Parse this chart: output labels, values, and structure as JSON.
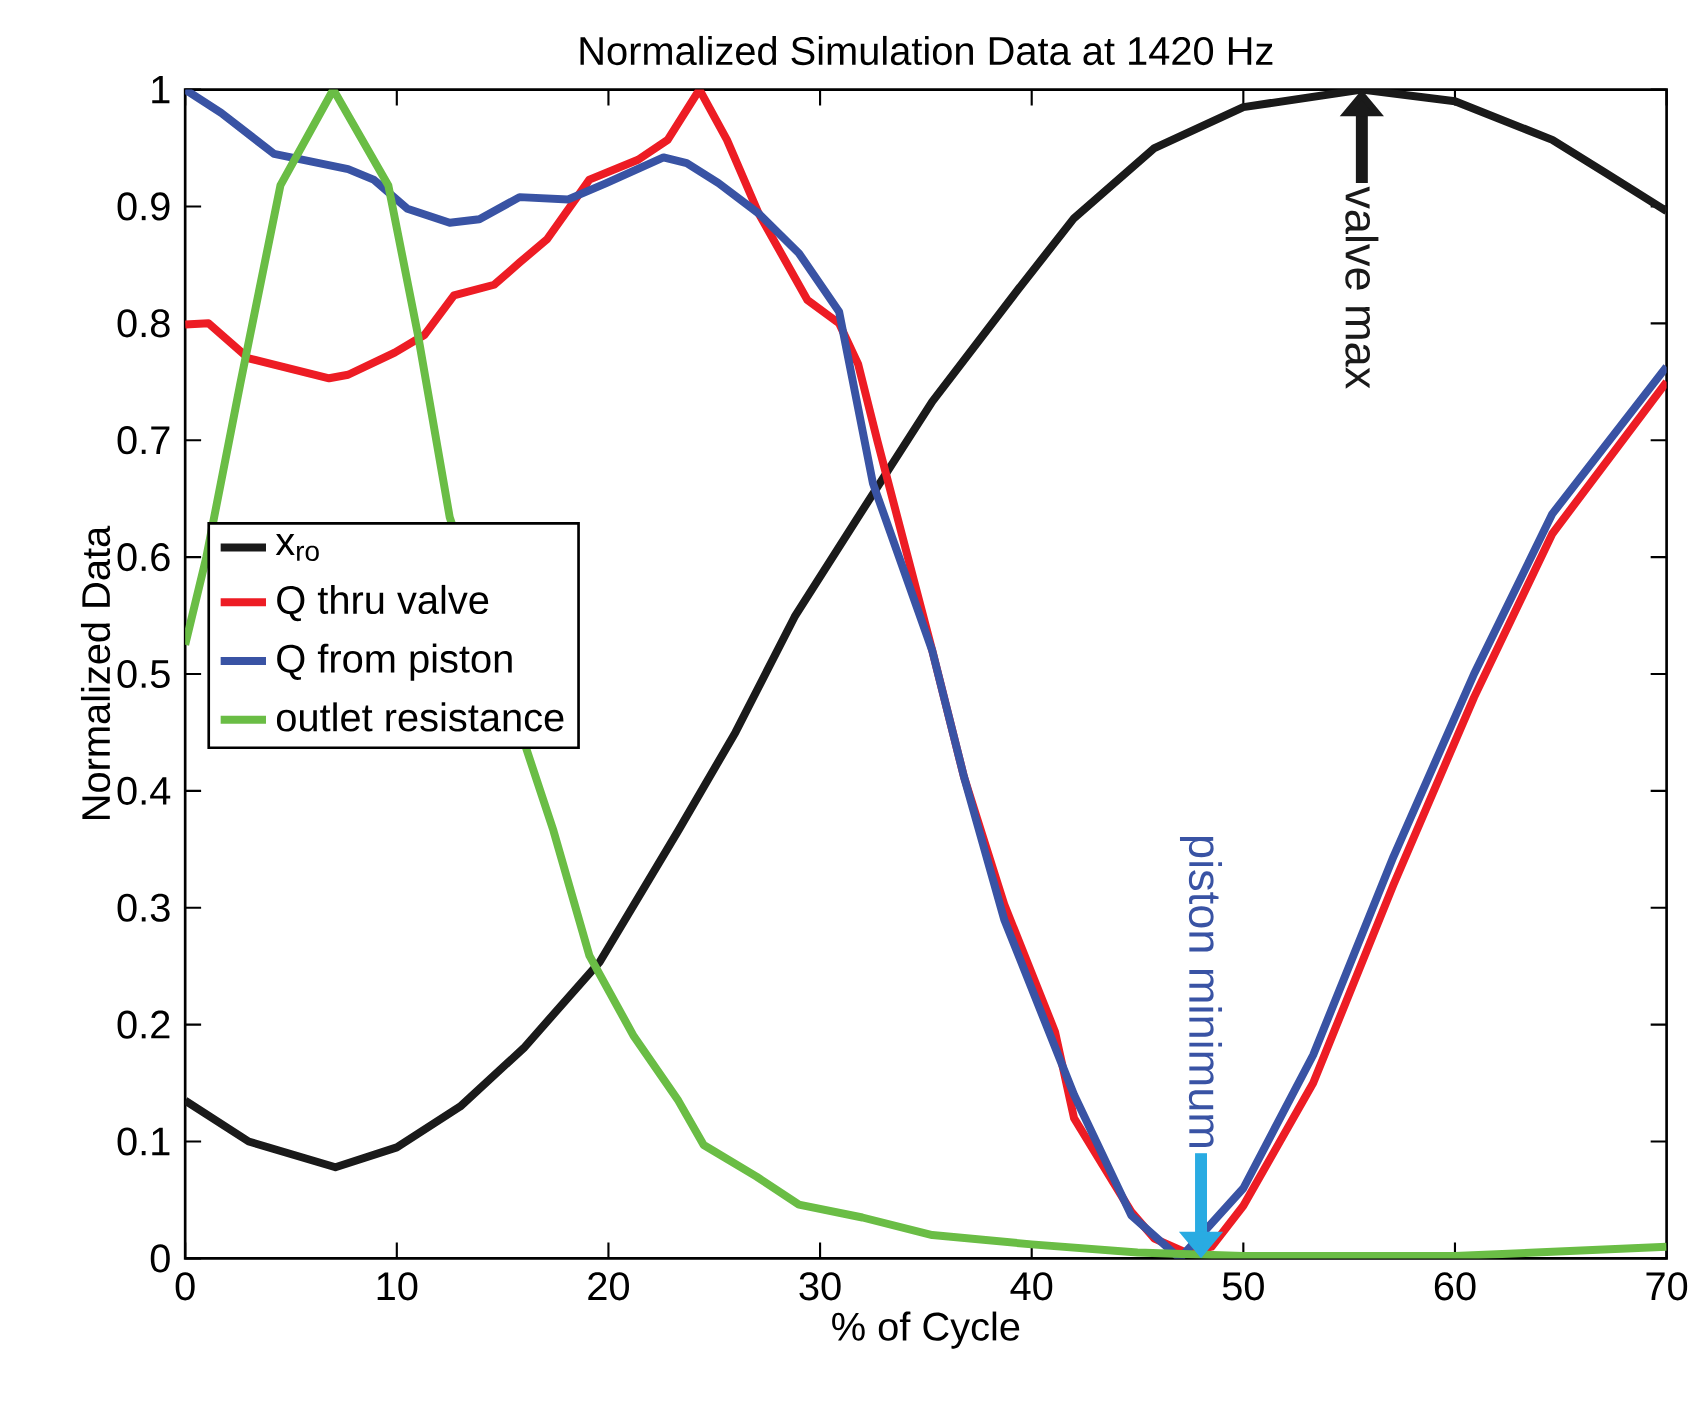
{
  "chart_data": {
    "type": "line",
    "title": "Normalized Simulation Data at 1420 Hz",
    "xlabel": "% of Cycle",
    "ylabel": "Normalized Data",
    "xlim": [
      0,
      70
    ],
    "ylim": [
      0,
      1
    ],
    "xticks": [
      0,
      10,
      20,
      30,
      40,
      50,
      60,
      70
    ],
    "yticks": [
      0,
      0.1,
      0.2,
      0.3,
      0.4,
      0.5,
      0.6,
      0.7,
      0.8,
      0.9,
      1
    ],
    "legend": "left",
    "grid": false,
    "marker": "none",
    "line_style": "solid",
    "series": [
      {
        "name": "x$_{ro}$",
        "color": "#1a1a1a",
        "x": [
          0,
          3,
          7.1,
          10,
          13,
          16,
          19.6,
          23.3,
          26,
          28.8,
          32,
          35.3,
          39.4,
          42,
          45.8,
          50,
          55.6,
          60,
          64.6,
          67,
          70
        ],
        "values": [
          0.135,
          0.1,
          0.078,
          0.095,
          0.13,
          0.18,
          0.254,
          0.366,
          0.45,
          0.549,
          0.64,
          0.733,
          0.83,
          0.89,
          0.95,
          0.985,
          1.0,
          0.99,
          0.957,
          0.93,
          0.896
        ]
      },
      {
        "name": "Q thru valve",
        "color": "#ed1c24",
        "x": [
          0,
          1.1,
          3,
          6.8,
          7.7,
          9.9,
          11.3,
          12.7,
          14.6,
          15.8,
          17.1,
          19.1,
          21.4,
          22.8,
          24.3,
          25.6,
          27.1,
          29.4,
          30.9,
          31.8,
          32.7,
          35.3,
          36.8,
          38.7,
          41.1,
          42,
          44.7,
          45.8,
          47.3,
          48.5,
          50,
          53.3,
          57.1,
          60.9,
          64.6,
          70
        ],
        "values": [
          0.799,
          0.8,
          0.77,
          0.753,
          0.756,
          0.775,
          0.79,
          0.824,
          0.833,
          0.852,
          0.872,
          0.923,
          0.94,
          0.957,
          1.0,
          0.957,
          0.894,
          0.82,
          0.8,
          0.765,
          0.7,
          0.52,
          0.412,
          0.303,
          0.194,
          0.12,
          0.04,
          0.017,
          0.005,
          0.01,
          0.045,
          0.15,
          0.32,
          0.48,
          0.62,
          0.75
        ]
      },
      {
        "name": "Q from piston",
        "color": "#3953a4",
        "x": [
          0,
          1.7,
          4.2,
          7.7,
          8.9,
          10.5,
          12.5,
          13.9,
          15.8,
          18.1,
          19.9,
          22.6,
          23.7,
          25.2,
          27.1,
          29,
          30.9,
          32.5,
          35.3,
          36.8,
          38.7,
          42,
          44.7,
          47,
          50,
          53.3,
          57.1,
          60.9,
          64.6,
          70
        ],
        "values": [
          1.0,
          0.98,
          0.945,
          0.932,
          0.923,
          0.898,
          0.886,
          0.889,
          0.908,
          0.906,
          0.92,
          0.942,
          0.937,
          0.92,
          0.894,
          0.86,
          0.81,
          0.663,
          0.52,
          0.412,
          0.29,
          0.14,
          0.037,
          0.0,
          0.06,
          0.174,
          0.344,
          0.5,
          0.637,
          0.763
        ]
      },
      {
        "name": "outlet resistance",
        "color": "#6abd45",
        "x": [
          0,
          1,
          2.6,
          4.5,
          7,
          9.6,
          11,
          12.5,
          15,
          17.4,
          19.1,
          21.2,
          23.3,
          24.5,
          27,
          29,
          32,
          35.3,
          40,
          45,
          50,
          60,
          70
        ],
        "values": [
          0.525,
          0.6,
          0.748,
          0.918,
          1.0,
          0.918,
          0.79,
          0.634,
          null,
          0.366,
          0.259,
          0.19,
          0.135,
          0.097,
          0.07,
          0.046,
          0.035,
          0.02,
          0.012,
          0.005,
          0.002,
          0.002,
          0.01
        ]
      }
    ],
    "annotations": [
      {
        "text": "valve max",
        "x": 55.6,
        "y": 1
      },
      {
        "text": "piston minimum",
        "x": 48,
        "y": 0
      }
    ]
  }
}
